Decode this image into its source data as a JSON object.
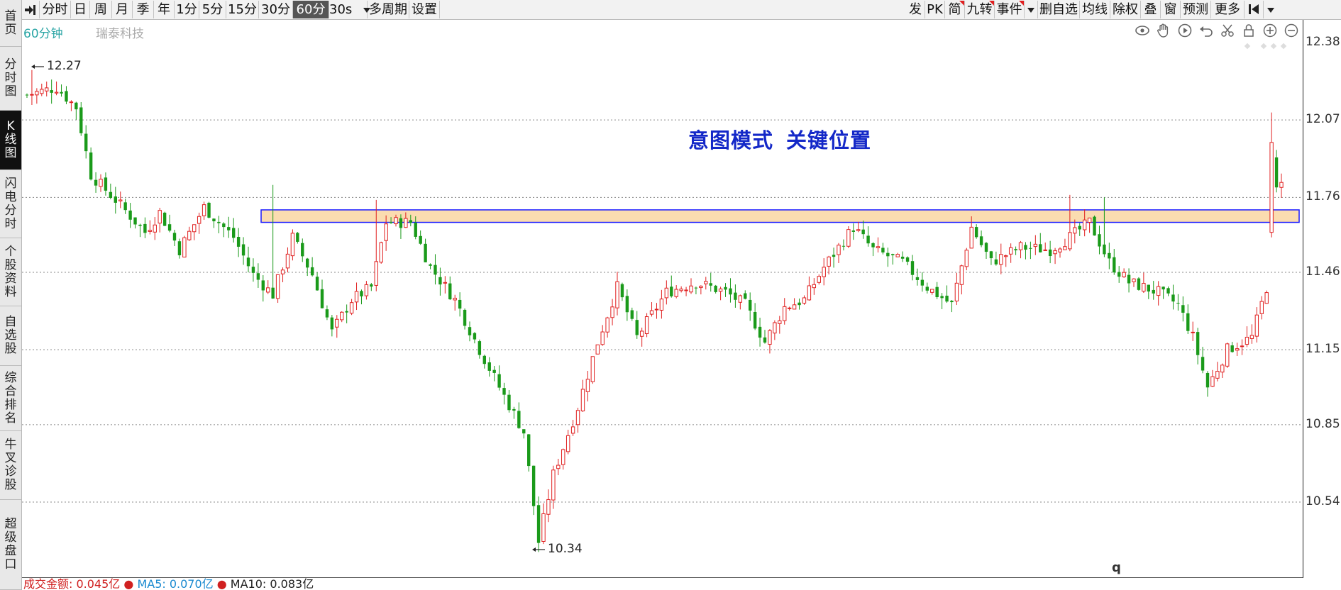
{
  "left_nav": [
    {
      "label": "首页",
      "active": false
    },
    {
      "label": "分时图",
      "active": false
    },
    {
      "label": "K线图",
      "active": true
    },
    {
      "label": "闪电分时",
      "active": false
    },
    {
      "label": "个股资料",
      "active": false
    },
    {
      "label": "自选股",
      "active": false
    },
    {
      "label": "综合排名",
      "active": false
    },
    {
      "label": "牛叉诊股",
      "active": false
    },
    {
      "label": "超级盘口",
      "active": false
    }
  ],
  "toolbar_left": [
    "分时",
    "日",
    "周",
    "月",
    "季",
    "年",
    "1分",
    "5分",
    "15分",
    "30分",
    "60分",
    "30s",
    "多周期",
    "设置"
  ],
  "toolbar_active": "60分",
  "toolbar_right": [
    "发",
    "PK",
    "简",
    "九转",
    "事件",
    "删自选",
    "均线",
    "除权",
    "叠",
    "窗",
    "预测",
    "更多"
  ],
  "chart_header": {
    "period": "60分钟",
    "stock_name": "瑞泰科技"
  },
  "annotation": {
    "part1": "意图模式",
    "part2": "关键位置"
  },
  "price_labels": {
    "high": "12.27",
    "low": "10.34"
  },
  "bottom_bar": {
    "amount": "成交金额: 0.045亿",
    "ma5": "MA5: 0.070亿",
    "ma10": "MA10: 0.083亿"
  },
  "q_label": "q",
  "control_icons": [
    "eye-icon",
    "hand-icon",
    "play-icon",
    "undo-icon",
    "scissors-icon",
    "lock-icon",
    "zoom-in-icon",
    "zoom-out-icon"
  ],
  "colors": {
    "up": "#e02020",
    "down": "#1a9a1a",
    "zone_fill": "#fbdcb0",
    "zone_border": "#1a1aff",
    "annotation": "#1428c8",
    "period_label": "#2aa5a5"
  },
  "chart_data": {
    "type": "candlestick",
    "y_ticks": [
      "12.38",
      "12.07",
      "11.76",
      "11.46",
      "11.15",
      "10.85",
      "10.54"
    ],
    "ylim": [
      10.27,
      12.41
    ],
    "high": 12.27,
    "low": 10.34,
    "key_zone": [
      11.66,
      11.71
    ],
    "last_close": 11.82,
    "waypoints": [
      [
        0,
        12.17
      ],
      [
        6,
        12.2
      ],
      [
        10,
        12.12
      ],
      [
        13,
        11.85
      ],
      [
        18,
        11.75
      ],
      [
        24,
        11.62
      ],
      [
        27,
        11.7
      ],
      [
        31,
        11.55
      ],
      [
        36,
        11.72
      ],
      [
        42,
        11.6
      ],
      [
        46,
        11.45
      ],
      [
        50,
        11.37
      ],
      [
        54,
        11.6
      ],
      [
        58,
        11.45
      ],
      [
        62,
        11.22
      ],
      [
        66,
        11.35
      ],
      [
        70,
        11.4
      ],
      [
        73,
        11.66
      ],
      [
        78,
        11.66
      ],
      [
        82,
        11.48
      ],
      [
        87,
        11.35
      ],
      [
        92,
        11.15
      ],
      [
        96,
        11.0
      ],
      [
        101,
        10.82
      ],
      [
        104,
        10.38
      ],
      [
        107,
        10.65
      ],
      [
        112,
        10.92
      ],
      [
        116,
        11.18
      ],
      [
        120,
        11.4
      ],
      [
        124,
        11.2
      ],
      [
        130,
        11.38
      ],
      [
        136,
        11.42
      ],
      [
        142,
        11.38
      ],
      [
        146,
        11.33
      ],
      [
        150,
        11.18
      ],
      [
        154,
        11.32
      ],
      [
        158,
        11.35
      ],
      [
        162,
        11.48
      ],
      [
        168,
        11.64
      ],
      [
        172,
        11.55
      ],
      [
        178,
        11.5
      ],
      [
        183,
        11.4
      ],
      [
        188,
        11.33
      ],
      [
        192,
        11.64
      ],
      [
        196,
        11.5
      ],
      [
        202,
        11.56
      ],
      [
        208,
        11.55
      ],
      [
        212,
        11.6
      ],
      [
        216,
        11.66
      ],
      [
        220,
        11.5
      ],
      [
        224,
        11.42
      ],
      [
        230,
        11.38
      ],
      [
        234,
        11.33
      ],
      [
        237,
        11.2
      ],
      [
        240,
        11.0
      ],
      [
        244,
        11.15
      ],
      [
        249,
        11.2
      ],
      [
        252,
        11.4
      ],
      [
        255,
        11.82
      ]
    ]
  }
}
